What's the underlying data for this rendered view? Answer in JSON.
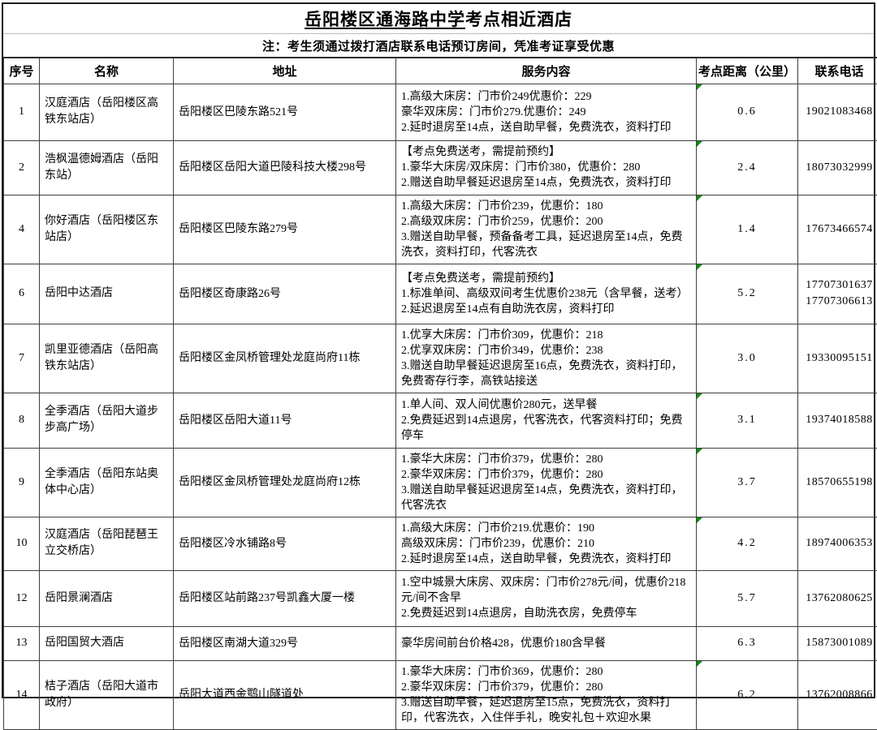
{
  "page": {
    "title_underlined": "岳阳楼区通海路中学",
    "title_rest": "考点相近酒店",
    "note": "注：考生须通过拨打酒店联系电话预订房间，凭准考证享受优惠"
  },
  "colors": {
    "indicator_green": "#178a17",
    "grid_line": "#3f3f3f",
    "frame": "#1c1c1c"
  },
  "table": {
    "columns": [
      "序号",
      "名称",
      "地址",
      "服务内容",
      "考点距离（公里）",
      "联系电话"
    ],
    "rows": [
      {
        "no": "1",
        "name": "汉庭酒店（岳阳楼区高铁东站店）",
        "address": "岳阳楼区巴陵东路521号",
        "services": [
          "1.高级大床房：门市价249优惠价：229",
          "豪华双床房：门市价279.优惠价：249",
          "2.延时退房至14点，送自助早餐，免费洗衣，资料打印"
        ],
        "distance": "0.6",
        "phones": [
          "19021083468"
        ],
        "indicator": true
      },
      {
        "no": "2",
        "name": "浩枫温德姆酒店（岳阳东站）",
        "address": "岳阳楼区岳阳大道巴陵科技大楼298号",
        "services": [
          "【考点免费送考，需提前预约】",
          "1.豪华大床房/双床房：门市价380，优惠价：280",
          "2.赠送自助早餐延迟退房至14点，免费洗衣，资料打印"
        ],
        "distance": "2.4",
        "phones": [
          "18073032999"
        ],
        "indicator": true
      },
      {
        "no": "4",
        "name": "你好酒店（岳阳楼区东站店）",
        "address": "岳阳楼区巴陵东路279号",
        "services": [
          "1.高级大床房：门市价239，优惠价：180",
          "2.高级双床房：门市价259，优惠价：200",
          "3.赠送自助早餐，预备备考工具，延迟退房至14点，免费洗衣，资料打印，代客洗衣"
        ],
        "distance": "1.4",
        "phones": [
          "17673466574"
        ],
        "indicator": true
      },
      {
        "no": "6",
        "name": "岳阳中达酒店",
        "address": "岳阳楼区奇康路26号",
        "services": [
          "【考点免费送考，需提前预约】",
          "1.标准单间、高级双间考生优惠价238元（含早餐，送考）",
          "2.延迟退房至14点有自助洗衣房，资料打印"
        ],
        "distance": "5.2",
        "phones": [
          "17707301637",
          "17707306613"
        ],
        "indicator": true
      },
      {
        "no": "7",
        "name": "凯里亚德酒店（岳阳高铁东站店）",
        "address": "岳阳楼区金凤桥管理处龙庭尚府11栋",
        "services": [
          "1.优享大床房：门市价309，优惠价：218",
          "2.优享双床房：门市价349，优惠价：238",
          "3.赠送自助早餐延迟退房至16点，免费洗衣，资料打印，免费寄存行李，高铁站接送"
        ],
        "distance": "3.0",
        "phones": [
          "19330095151"
        ],
        "indicator": false
      },
      {
        "no": "8",
        "name": "全季酒店（岳阳大道步步高广场）",
        "address": "岳阳楼区岳阳大道11号",
        "services": [
          "1.单人间、双人间优惠价280元，送早餐",
          "2.免费延迟到14点退房，代客洗衣，代客资料打印；免费停车"
        ],
        "distance": "3.1",
        "phones": [
          "19374018588"
        ],
        "indicator": true
      },
      {
        "no": "9",
        "name": "全季酒店（岳阳东站奥体中心店）",
        "address": "岳阳楼区金凤桥管理处龙庭尚府12栋",
        "services": [
          "1.豪华大床房：门市价379，优惠价：280",
          "2.豪华双床房：门市价379，优惠价：280",
          "3.赠送自助早餐延迟退房至14点，免费洗衣，资料打印，代客洗衣"
        ],
        "distance": "3.7",
        "phones": [
          "18570655198"
        ],
        "indicator": true
      },
      {
        "no": "10",
        "name": "汉庭酒店（岳阳琵琶王立交桥店）",
        "address": "岳阳楼区冷水铺路8号",
        "services": [
          "1.高级大床房：门市价219.优惠价：190",
          "高级双床房：门市价239，优惠价：210",
          "2.延时退房至14点，送自助早餐，免费洗衣，资料打印"
        ],
        "distance": "4.2",
        "phones": [
          "18974006353"
        ],
        "indicator": true
      },
      {
        "no": "12",
        "name": "岳阳景澜酒店",
        "address": "岳阳楼区站前路237号凯鑫大厦一楼",
        "services": [
          "1.空中城景大床房、双床房：门市价278元/间，优惠价218元/间不含早",
          "2.免费延迟到14点退房，自助洗衣房，免费停车"
        ],
        "distance": "5.7",
        "phones": [
          "13762080625"
        ],
        "indicator": false
      },
      {
        "no": "13",
        "name": "岳阳国贸大酒店",
        "address": "岳阳楼区南湖大道329号",
        "services": [
          "豪华房间前台价格428，优惠价180含早餐"
        ],
        "distance": "6.3",
        "phones": [
          "15873001089"
        ],
        "indicator": false
      },
      {
        "no": "14",
        "name": "桔子酒店（岳阳大道市政府）",
        "address": "岳阳大道西金鹗山隧道处",
        "services": [
          "1.豪华大床房：门市价369，优惠价：280",
          "2.豪华双床房：门市价379，优惠价：280",
          "3.赠送自助早餐，延迟退房至15点，免费洗衣，资料打印，代客洗衣，入住伴手礼，晚安礼包＋欢迎水果"
        ],
        "distance": "6.2",
        "phones": [
          "13762008866"
        ],
        "indicator": true
      }
    ]
  }
}
